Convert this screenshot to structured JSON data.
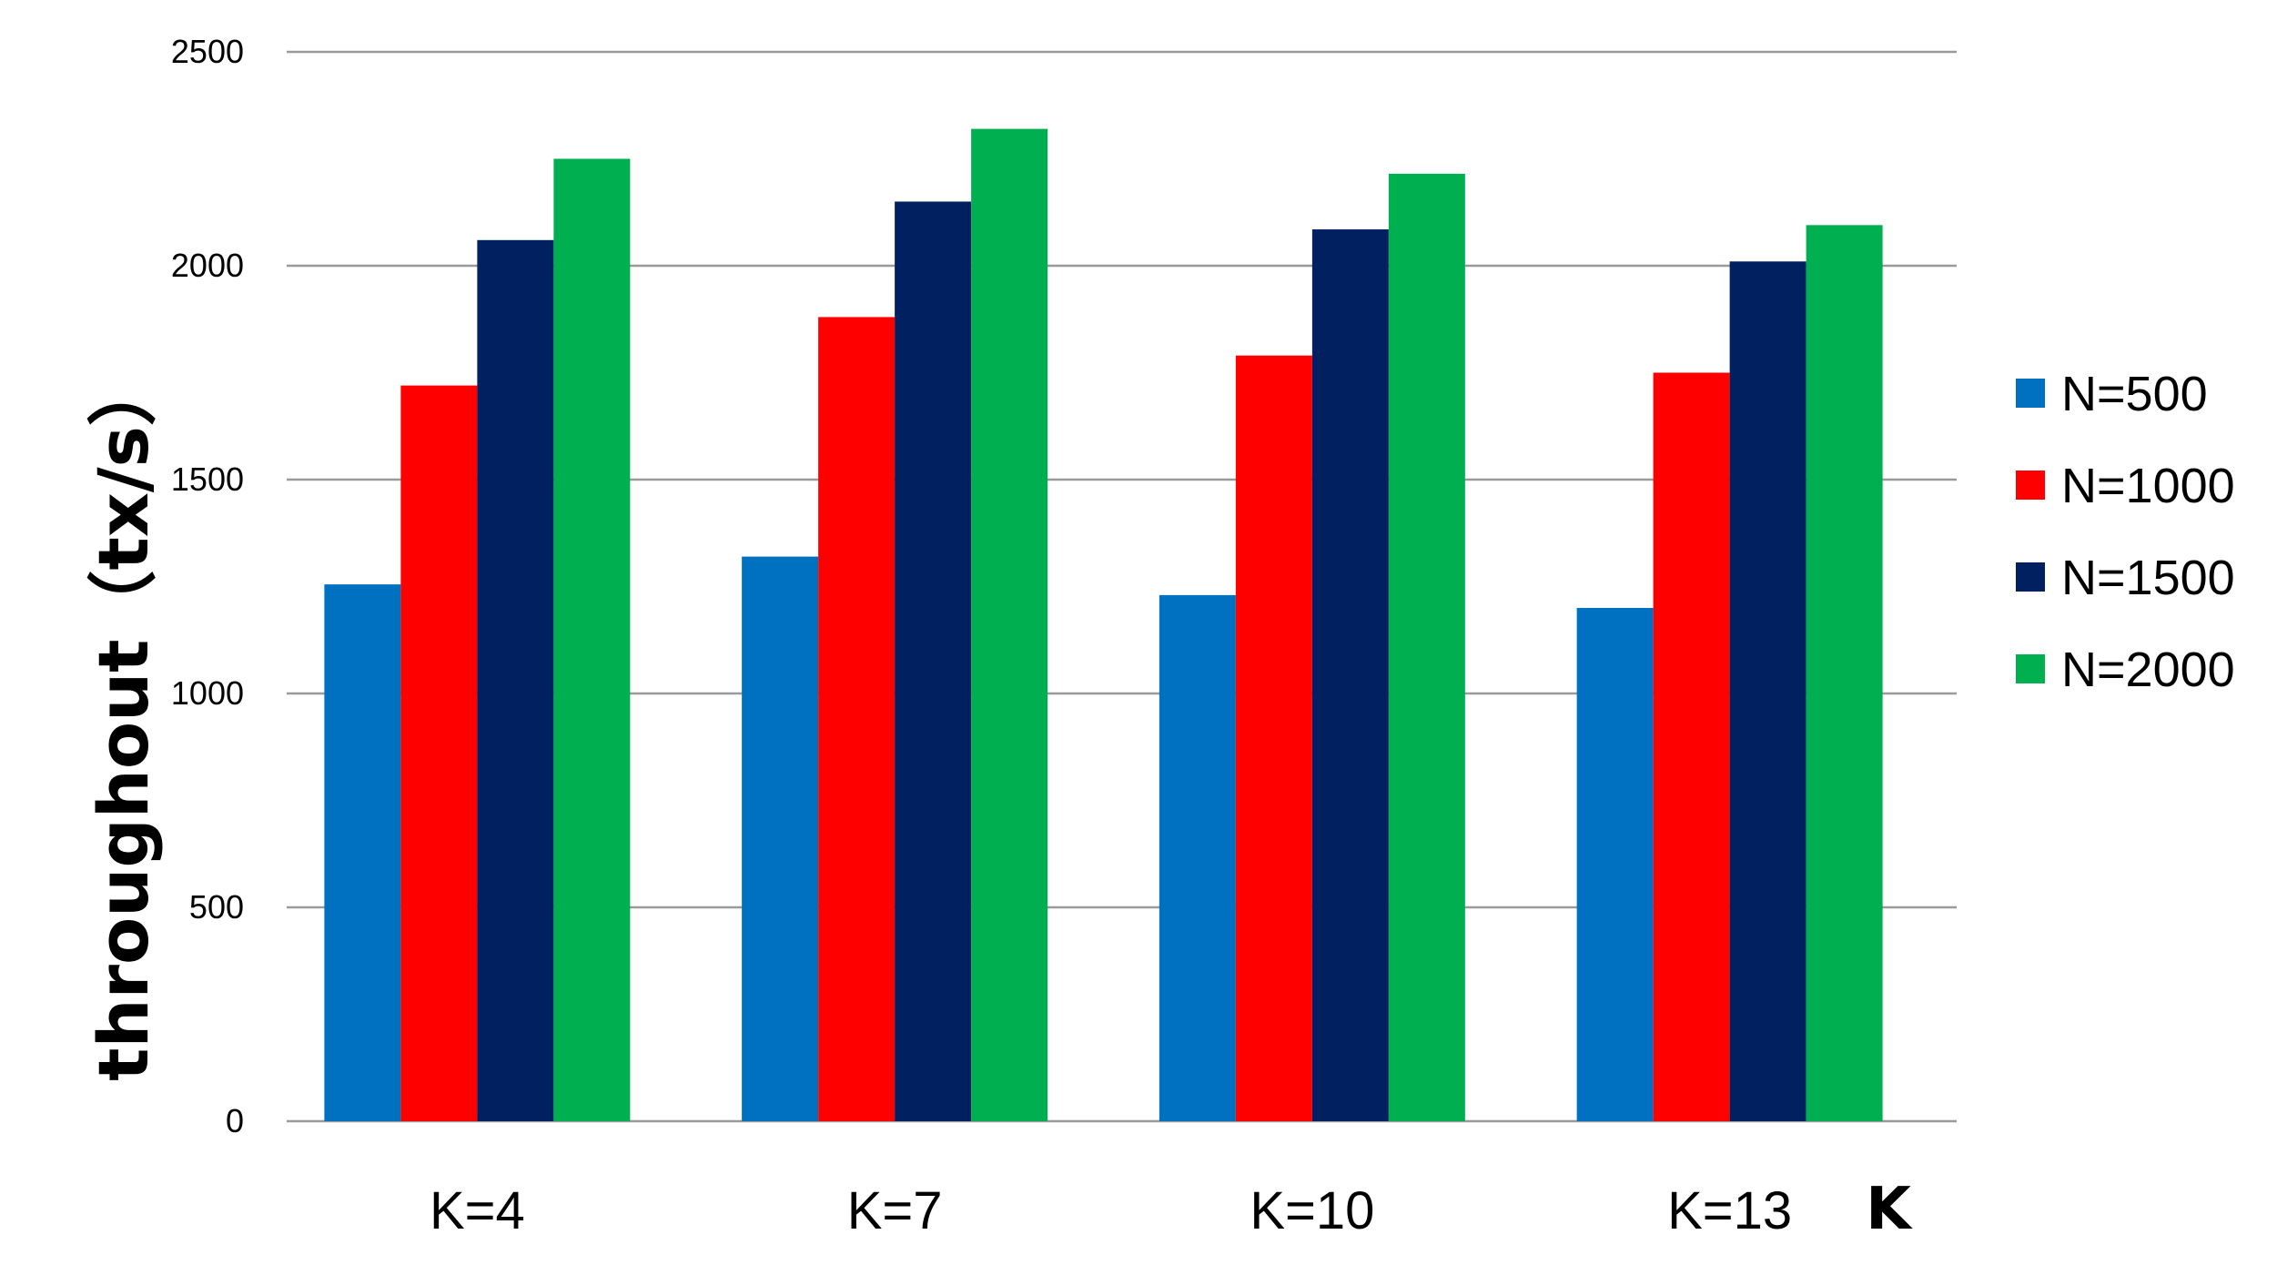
{
  "chart_data": {
    "type": "bar",
    "categories": [
      "K=4",
      "K=7",
      "K=10",
      "K=13"
    ],
    "series": [
      {
        "name": "N=500",
        "color": "#0070C0",
        "values": [
          1255,
          1320,
          1230,
          1200
        ]
      },
      {
        "name": "N=1000",
        "color": "#FF0000",
        "values": [
          1720,
          1880,
          1790,
          1750
        ]
      },
      {
        "name": "N=1500",
        "color": "#002060",
        "values": [
          2060,
          2150,
          2085,
          2010
        ]
      },
      {
        "name": "N=2000",
        "color": "#00B050",
        "values": [
          2250,
          2320,
          2215,
          2095
        ]
      }
    ],
    "xlabel": "K",
    "ylabel": "throughout（tx/s）",
    "ylim": [
      0,
      2500
    ],
    "yticks": [
      0,
      500,
      1000,
      1500,
      2000,
      2500
    ],
    "grid": true,
    "legend_position": "right"
  }
}
